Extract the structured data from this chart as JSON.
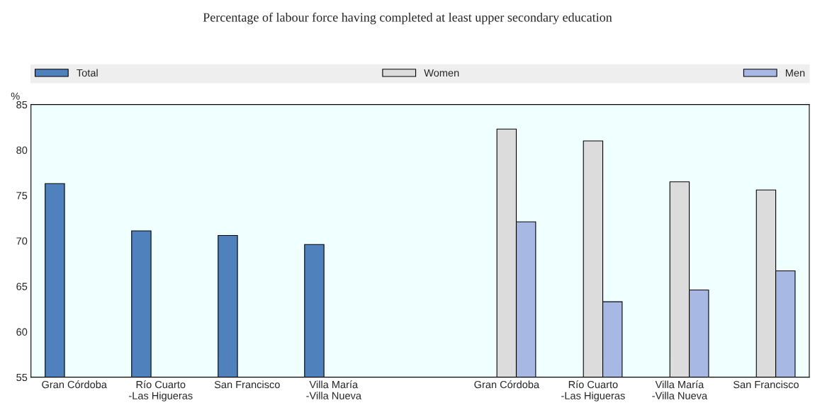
{
  "chart_data": {
    "type": "bar",
    "title": "Percentage of labour force having completed at least upper secondary education",
    "ylabel": "%",
    "categories": [
      "Gran Córdoba",
      "Río Cuarto\n-Las Higueras",
      "San Francisco",
      "Villa María\n-Villa Nueva",
      null,
      "Gran Córdoba",
      "Río Cuarto\n-Las Higueras",
      "Villa María\n-Villa Nueva",
      "San Francisco"
    ],
    "series": [
      {
        "name": "Total",
        "color": "#4f81bd",
        "values": [
          76.3,
          71.1,
          70.6,
          69.6,
          null,
          null,
          null,
          null,
          null
        ]
      },
      {
        "name": "Women",
        "color": "#dcdcdc",
        "values": [
          null,
          null,
          null,
          null,
          null,
          82.3,
          81.0,
          76.5,
          75.6
        ]
      },
      {
        "name": "Men",
        "color": "#a6b8e3",
        "values": [
          null,
          null,
          null,
          null,
          null,
          72.1,
          63.3,
          64.6,
          66.7
        ]
      }
    ],
    "ylim": [
      55,
      85
    ],
    "yticks": [
      55,
      60,
      65,
      70,
      75,
      80,
      85
    ],
    "grid": false,
    "legend": "top"
  }
}
